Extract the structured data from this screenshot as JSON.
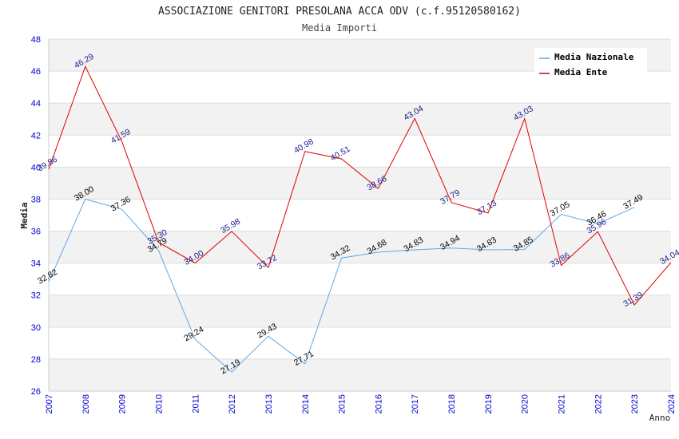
{
  "chart_data": {
    "type": "line",
    "title": "ASSOCIAZIONE GENITORI PRESOLANA ACCA ODV (c.f.95120580162)",
    "subtitle": "Media Importi",
    "xlabel": "Anno",
    "ylabel": "Media",
    "ylim": [
      26,
      48
    ],
    "yticks": [
      26,
      28,
      30,
      32,
      34,
      36,
      38,
      40,
      42,
      44,
      46,
      48
    ],
    "x": [
      "2007",
      "2008",
      "2009",
      "2010",
      "2011",
      "2012",
      "2013",
      "2014",
      "2015",
      "2016",
      "2017",
      "2018",
      "2019",
      "2020",
      "2021",
      "2022",
      "2023",
      "2024"
    ],
    "grid": "horizontal bands",
    "legend_position": "top-right",
    "series": [
      {
        "name": "Media Nazionale",
        "color": "#5fa8e8",
        "values": [
          32.82,
          38.0,
          37.36,
          34.79,
          29.24,
          27.19,
          29.43,
          27.71,
          34.32,
          34.68,
          34.83,
          34.94,
          34.83,
          34.85,
          37.05,
          36.46,
          37.49,
          null
        ],
        "labels": [
          "32.82",
          "38.00",
          "37.36",
          "34.79",
          "29.24",
          "27.19",
          "29.43",
          "27.71",
          "34.32",
          "34.68",
          "34.83",
          "34.94",
          "34.83",
          "34.85",
          "37.05",
          "36.46",
          "37.49",
          null
        ]
      },
      {
        "name": "Media Ente",
        "color": "#e00000",
        "values": [
          39.86,
          46.29,
          41.59,
          35.3,
          34.0,
          35.98,
          33.72,
          40.98,
          40.51,
          38.66,
          43.04,
          37.79,
          37.13,
          43.03,
          33.86,
          35.96,
          31.39,
          34.04
        ],
        "labels": [
          "39.86",
          "46.29",
          "41.59",
          "35.30",
          "34.00",
          "35.98",
          "33.72",
          "40.98",
          "40.51",
          "38.66",
          "43.04",
          "37.79",
          "37.13",
          "43.03",
          "33.86",
          "35.96",
          "31.39",
          "34.04"
        ]
      }
    ]
  }
}
